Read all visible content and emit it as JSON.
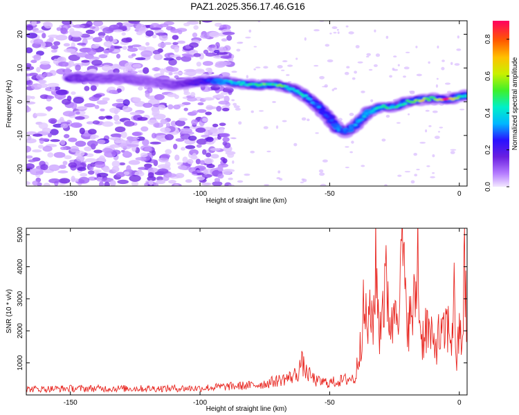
{
  "title": "PAZ1.2025.356.17.46.G16",
  "chart_data": [
    {
      "type": "heatmap",
      "xlabel": "Height of straight line (km)",
      "ylabel": "Frequency (Hz)",
      "xlim": [
        -167,
        3
      ],
      "ylim": [
        -25,
        24
      ],
      "xticks": [
        "-150",
        "-100",
        "-50",
        "0"
      ],
      "yticks": [
        "20",
        "10",
        "0",
        "-10",
        "-20"
      ],
      "colorbar": {
        "label": "Normalized spectral amplitude",
        "range": [
          0,
          0.9
        ],
        "ticks": [
          "0.0",
          "0.2",
          "0.4",
          "0.6",
          "0.8"
        ]
      },
      "ridge": {
        "x": [
          -150,
          -140,
          -130,
          -120,
          -110,
          -100,
          -90,
          -85,
          -80,
          -75,
          -70,
          -65,
          -60,
          -55,
          -50,
          -47,
          -44,
          -40,
          -35,
          -30,
          -25,
          -20,
          -15,
          -10,
          -5,
          0,
          3
        ],
        "y": [
          7,
          7,
          7,
          6,
          5,
          6,
          6,
          5.5,
          5,
          5,
          5,
          4,
          2,
          -1,
          -5,
          -8,
          -9,
          -7,
          -3,
          -1.5,
          -1.5,
          0,
          0.5,
          1,
          0.5,
          1.5,
          2
        ],
        "amp": [
          0.15,
          0.12,
          0.12,
          0.1,
          0.12,
          0.2,
          0.35,
          0.4,
          0.45,
          0.5,
          0.5,
          0.45,
          0.4,
          0.3,
          0.25,
          0.3,
          0.3,
          0.35,
          0.35,
          0.5,
          0.45,
          0.5,
          0.6,
          0.55,
          0.85,
          0.5,
          0.45
        ]
      }
    },
    {
      "type": "line",
      "xlabel": "Height of straight line (km)",
      "ylabel": "SNR (10 * v/v)",
      "xlim": [
        -167,
        3
      ],
      "ylim": [
        0,
        5200
      ],
      "xticks": [
        "-150",
        "-100",
        "-50",
        "0"
      ],
      "yticks": [
        "5000",
        "4000",
        "3000",
        "2000",
        "1000"
      ],
      "series": [
        {
          "name": "SNR",
          "color": "#e8251f",
          "x": [
            -167,
            -150,
            -120,
            -100,
            -90,
            -80,
            -75,
            -70,
            -65,
            -62,
            -61,
            -59,
            -55,
            -50,
            -45,
            -42,
            -40,
            -39,
            -37,
            -35,
            -33,
            -32,
            -31,
            -30,
            -28,
            -26,
            -24,
            -23,
            -22,
            -21,
            -20,
            -19,
            -17,
            -16,
            -15,
            -14,
            -13,
            -12,
            -10,
            -8,
            -6,
            -5,
            -3,
            -2,
            -1,
            0,
            1,
            2,
            3
          ],
          "y": [
            180,
            200,
            200,
            210,
            260,
            300,
            350,
            450,
            550,
            700,
            1050,
            700,
            420,
            380,
            450,
            520,
            500,
            1200,
            2500,
            2200,
            2600,
            4300,
            1800,
            2800,
            3400,
            2000,
            3800,
            2400,
            5200,
            2800,
            2700,
            2200,
            2900,
            4500,
            1900,
            1800,
            2200,
            2000,
            1500,
            1800,
            1800,
            2200,
            1800,
            3000,
            1000,
            2000,
            1600,
            3800,
            2100
          ]
        }
      ]
    }
  ]
}
